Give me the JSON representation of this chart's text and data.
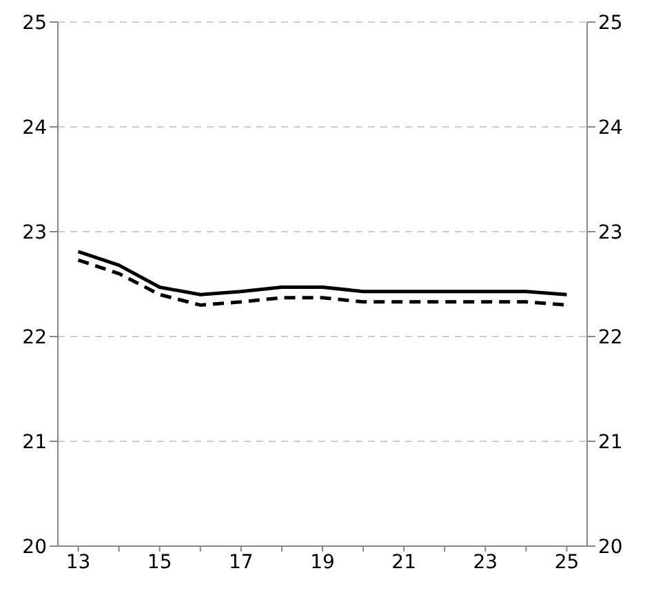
{
  "chart_data": {
    "type": "line",
    "x": [
      13,
      14,
      15,
      16,
      17,
      18,
      19,
      20,
      21,
      22,
      23,
      24,
      25
    ],
    "series": [
      {
        "color": "#000000",
        "line_style": "solid",
        "values": [
          22.81,
          22.68,
          22.47,
          22.4,
          22.43,
          22.47,
          22.47,
          22.43,
          22.43,
          22.43,
          22.43,
          22.43,
          22.4
        ]
      },
      {
        "color": "#000000",
        "line_style": "dashed",
        "values": [
          22.73,
          22.6,
          22.4,
          22.3,
          22.33,
          22.37,
          22.37,
          22.33,
          22.33,
          22.33,
          22.33,
          22.33,
          22.3
        ]
      }
    ],
    "xlim": [
      12.5,
      25.5
    ],
    "xticks": [
      13,
      {
        "value": 14,
        "label": null
      },
      15,
      {
        "value": 16,
        "label": null
      },
      17,
      {
        "value": 18,
        "label": null
      },
      19,
      {
        "value": 20,
        "label": null
      },
      21,
      {
        "value": 22,
        "label": null
      },
      23,
      {
        "value": 24,
        "label": null
      },
      25
    ],
    "ylim": [
      20,
      25
    ],
    "yticks": [
      20,
      21,
      22,
      23,
      24,
      25
    ],
    "y2lim": [
      20,
      25
    ],
    "y2ticks": [
      20,
      21,
      22,
      23,
      24,
      25
    ],
    "grid": "y",
    "marker": "none"
  }
}
